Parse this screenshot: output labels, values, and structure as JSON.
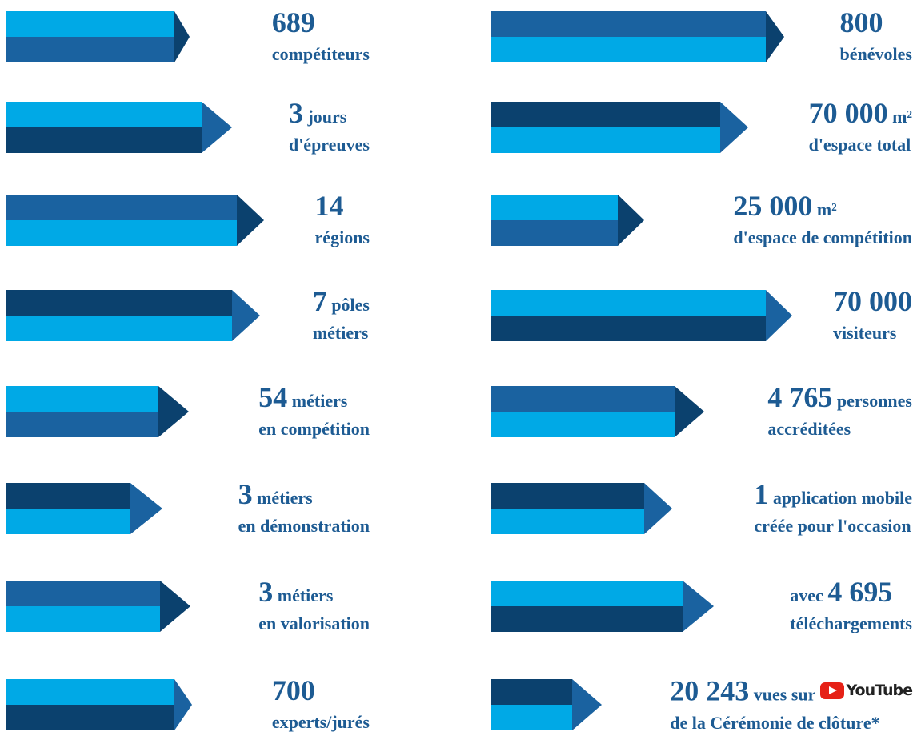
{
  "left": [
    {
      "number": "689",
      "line2": "compétiteurs"
    },
    {
      "number": "3",
      "text": "jours",
      "line2": "d'épreuves"
    },
    {
      "number": "14",
      "line2": "régions"
    },
    {
      "number": "7",
      "text": "pôles",
      "line2": "métiers"
    },
    {
      "number": "54",
      "text": "métiers",
      "line2": "en compétition"
    },
    {
      "number": "3",
      "text": "métiers",
      "line2": "en démonstration"
    },
    {
      "number": "3",
      "text": "métiers",
      "line2": "en valorisation"
    },
    {
      "number": "700",
      "line2": "experts/jurés"
    }
  ],
  "right": [
    {
      "number": "800",
      "line2": "bénévoles"
    },
    {
      "number": "70 000",
      "text": "m²",
      "line2": "d'espace total"
    },
    {
      "number": "25 000",
      "text": "m²",
      "line2": "d'espace de compétition"
    },
    {
      "number": "70 000",
      "line2": "visiteurs"
    },
    {
      "number": "4 765",
      "text": "personnes",
      "line2": "accréditées"
    },
    {
      "number": "1",
      "text": "application mobile",
      "line2": "créée pour l'occasion"
    },
    {
      "prefix": "avec",
      "number": "4 695",
      "line2": "téléchargements"
    },
    {
      "number": "20 243",
      "text": "vues sur",
      "logo": "YouTube",
      "line2": "de la Cérémonie de clôture*"
    }
  ]
}
